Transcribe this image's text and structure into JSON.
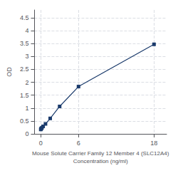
{
  "chart_data": {
    "type": "line",
    "xlabel": "Mouse Solute Carrier Family 12 Member 4 (SLC12A4)\nConcentration (ng/ml)",
    "ylabel": "OD",
    "x": [
      0,
      0.047,
      0.094,
      0.188,
      0.375,
      0.75,
      1.5,
      3,
      6,
      18
    ],
    "values": [
      0.171,
      0.192,
      0.211,
      0.238,
      0.291,
      0.385,
      0.599,
      1.063,
      1.832,
      3.469
    ],
    "color": "#1a3a6b",
    "marker": "square",
    "xlim": [
      -1.0,
      20.0
    ],
    "ylim": [
      0,
      4.8
    ],
    "xticks": [
      0,
      6,
      18
    ],
    "yticks": [
      0,
      0.5,
      1,
      1.5,
      2,
      2.5,
      3,
      3.5,
      4,
      4.5
    ],
    "grid": true
  }
}
